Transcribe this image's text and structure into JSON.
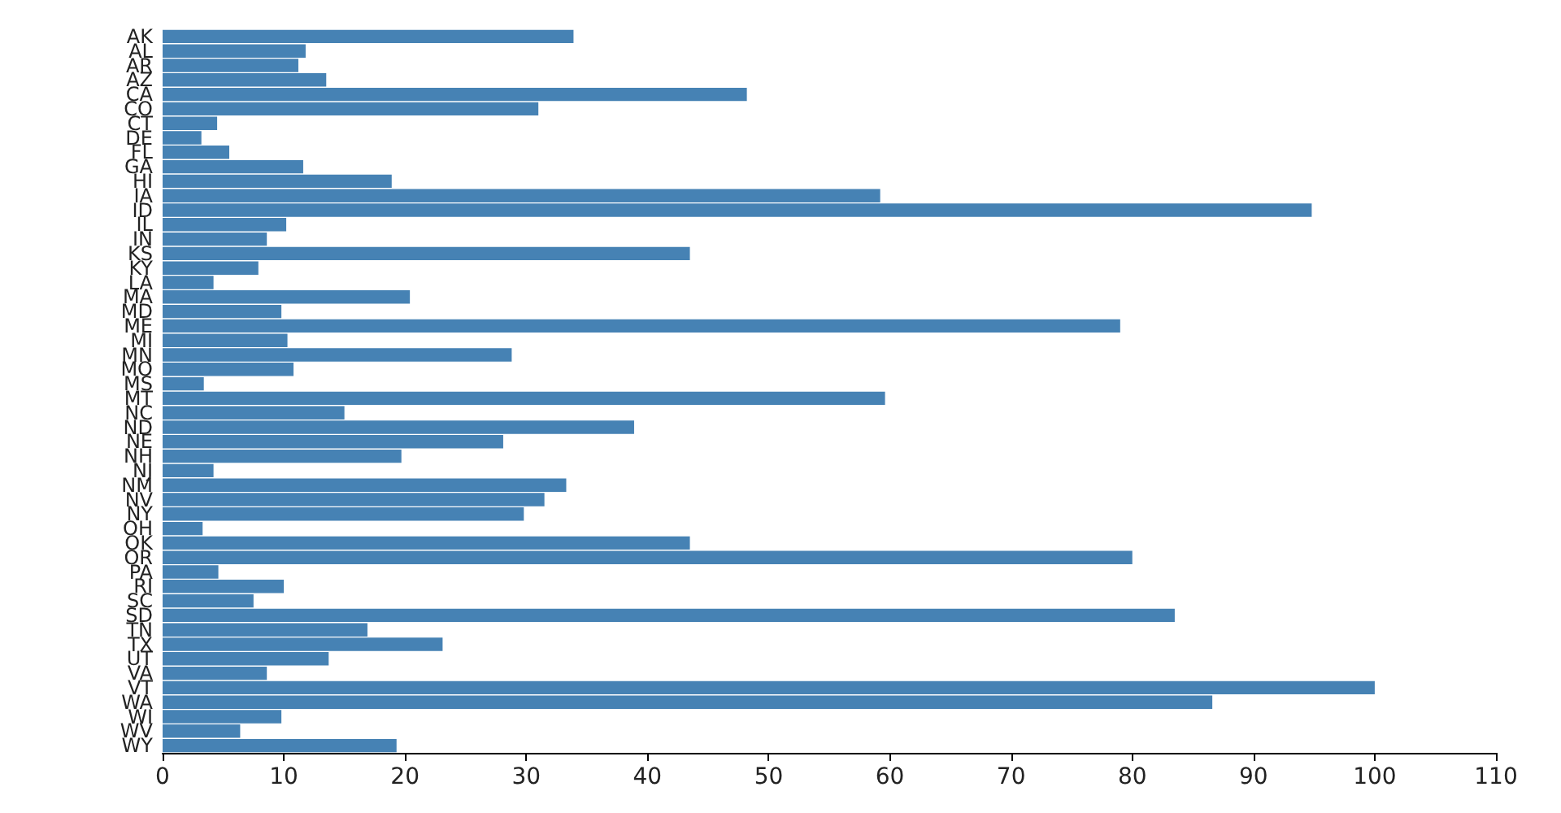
{
  "chart_data": {
    "type": "bar",
    "orientation": "horizontal",
    "categories": [
      "AK",
      "AL",
      "AR",
      "AZ",
      "CA",
      "CO",
      "CT",
      "DE",
      "FL",
      "GA",
      "HI",
      "IA",
      "ID",
      "IL",
      "IN",
      "KS",
      "KY",
      "LA",
      "MA",
      "MD",
      "ME",
      "MI",
      "MN",
      "MO",
      "MS",
      "MT",
      "NC",
      "ND",
      "NE",
      "NH",
      "NJ",
      "NM",
      "NV",
      "NY",
      "OH",
      "OK",
      "OR",
      "PA",
      "RI",
      "SC",
      "SD",
      "TN",
      "TX",
      "UT",
      "VA",
      "VT",
      "WA",
      "WI",
      "WV",
      "WY"
    ],
    "values": [
      33.9,
      11.8,
      11.2,
      13.5,
      48.2,
      31.0,
      4.5,
      3.2,
      5.5,
      11.6,
      18.9,
      59.2,
      94.8,
      10.2,
      8.6,
      43.5,
      7.9,
      4.2,
      20.4,
      9.8,
      79.0,
      10.3,
      28.8,
      10.8,
      3.4,
      59.6,
      15.0,
      38.9,
      28.1,
      19.7,
      4.2,
      33.3,
      31.5,
      29.8,
      3.3,
      43.5,
      80.0,
      4.6,
      10.0,
      7.5,
      83.5,
      16.9,
      23.1,
      13.7,
      8.6,
      100.0,
      86.6,
      9.8,
      6.4,
      19.3
    ],
    "color": "#4682b4",
    "xlim": [
      0,
      110
    ],
    "xticks": [
      0,
      10,
      20,
      30,
      40,
      50,
      60,
      70,
      80,
      90,
      100,
      110
    ],
    "grid": false
  }
}
